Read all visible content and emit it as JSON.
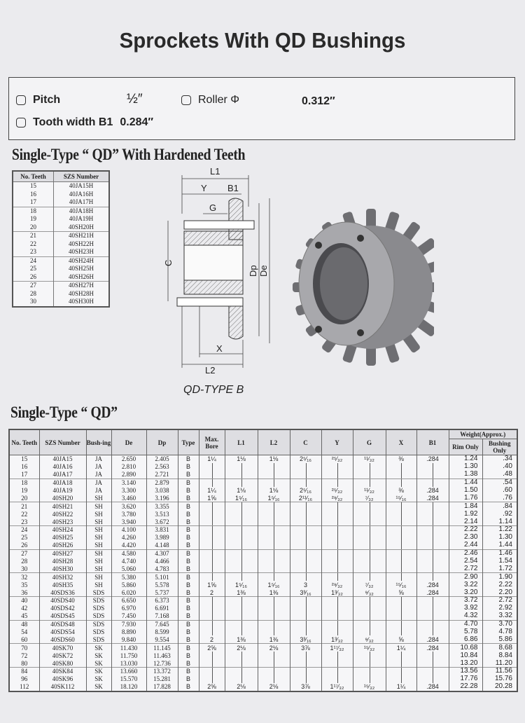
{
  "title": "Sprockets With QD Bushings",
  "specs": {
    "pitch_label": "Pitch",
    "pitch_value": "½″",
    "roller_label": "Roller Φ",
    "roller_value": "0.312″",
    "tooth_width_label": "Tooth width B1",
    "tooth_width_value": "0.284″"
  },
  "hardened": {
    "heading": "Single-Type “ QD” With Hardened Teeth",
    "columns": [
      "No. Teeth",
      "SZS Number"
    ],
    "rows": [
      [
        "15",
        "40JA15H"
      ],
      [
        "16",
        "40JA16H"
      ],
      [
        "17",
        "40JA17H"
      ],
      [
        "18",
        "40JA18H"
      ],
      [
        "19",
        "40JA19H"
      ],
      [
        "20",
        "40SH20H"
      ],
      [
        "21",
        "40SH21H"
      ],
      [
        "22",
        "40SH22H"
      ],
      [
        "23",
        "40SH23H"
      ],
      [
        "24",
        "40SH24H"
      ],
      [
        "25",
        "40SH25H"
      ],
      [
        "26",
        "40SH26H"
      ],
      [
        "27",
        "40SH27H"
      ],
      [
        "28",
        "40SH28H"
      ],
      [
        "30",
        "40SH30H"
      ]
    ]
  },
  "diagram": {
    "labels": {
      "L1": "L1",
      "Y": "Y",
      "B1": "B1",
      "G": "G",
      "C": "C",
      "Dp": "Dp",
      "De": "De",
      "X": "X",
      "L2": "L2"
    },
    "caption": "QD-TYPE B"
  },
  "single": {
    "heading": "Single-Type “ QD”",
    "columns": [
      "No. Teeth",
      "SZS Number",
      "Bush-ing",
      "De",
      "Dp",
      "Type",
      "Max. Bore",
      "L1",
      "L2",
      "C",
      "Y",
      "G",
      "X",
      "B1"
    ],
    "weight_header": "Weight(Approx.)",
    "weight_columns": [
      "Rim Only",
      "Bushing Only"
    ],
    "rows": [
      [
        "15",
        "40JA15",
        "JA",
        "2.650",
        "2.405",
        "B",
        "1¼",
        "1⅛",
        "1⅛",
        "2⁵⁄₁₆",
        "²⁵⁄₃₂",
        "¹¹⁄₃₂",
        "⅜",
        ".284",
        "1.24",
        ".34"
      ],
      [
        "16",
        "40JA16",
        "JA",
        "2.810",
        "2.563",
        "B",
        "",
        "",
        "",
        "",
        "",
        "",
        "",
        "",
        "1.30",
        ".40"
      ],
      [
        "17",
        "40JA17",
        "JA",
        "2.890",
        "2.721",
        "B",
        "",
        "",
        "",
        "",
        "",
        "",
        "",
        "",
        "1.38",
        ".48"
      ],
      [
        "18",
        "40JA18",
        "JA",
        "3.140",
        "2.879",
        "B",
        "",
        "",
        "",
        "",
        "",
        "",
        "",
        "",
        "1.44",
        ".54"
      ],
      [
        "19",
        "40JA19",
        "JA",
        "3.300",
        "3.038",
        "B",
        "1¼",
        "1⅛",
        "1⅛",
        "2⁵⁄₁₆",
        "²⁵⁄₃₂",
        "¹¹⁄₃₂",
        "⅜",
        ".284",
        "1.50",
        ".60"
      ],
      [
        "20",
        "40SH20",
        "SH",
        "3.460",
        "3.196",
        "B",
        "1⅝",
        "1⁵⁄₁₆",
        "1⁵⁄₁₆",
        "2¹¹⁄₁₆",
        "²⁹⁄₃₂",
        "⁷⁄₃₂",
        "¹⁵⁄₁₆",
        ".284",
        "1.76",
        ".76"
      ],
      [
        "21",
        "40SH21",
        "SH",
        "3.620",
        "3.355",
        "B",
        "",
        "",
        "",
        "",
        "",
        "",
        "",
        "",
        "1.84",
        ".84"
      ],
      [
        "22",
        "40SH22",
        "SH",
        "3.780",
        "3.513",
        "B",
        "",
        "",
        "",
        "",
        "",
        "",
        "",
        "",
        "1.92",
        ".92"
      ],
      [
        "23",
        "40SH23",
        "SH",
        "3.940",
        "3.672",
        "B",
        "",
        "",
        "",
        "",
        "",
        "",
        "",
        "",
        "2.14",
        "1.14"
      ],
      [
        "24",
        "40SH24",
        "SH",
        "4.100",
        "3.831",
        "B",
        "",
        "",
        "",
        "",
        "",
        "",
        "",
        "",
        "2.22",
        "1.22"
      ],
      [
        "25",
        "40SH25",
        "SH",
        "4.260",
        "3.989",
        "B",
        "",
        "",
        "",
        "",
        "",
        "",
        "",
        "",
        "2.30",
        "1.30"
      ],
      [
        "26",
        "40SH26",
        "SH",
        "4.420",
        "4.148",
        "B",
        "",
        "",
        "",
        "",
        "",
        "",
        "",
        "",
        "2.44",
        "1.44"
      ],
      [
        "27",
        "40SH27",
        "SH",
        "4.580",
        "4.307",
        "B",
        "",
        "",
        "",
        "",
        "",
        "",
        "",
        "",
        "2.46",
        "1.46"
      ],
      [
        "28",
        "40SH28",
        "SH",
        "4.740",
        "4.466",
        "B",
        "",
        "",
        "",
        "",
        "",
        "",
        "",
        "",
        "2.54",
        "1.54"
      ],
      [
        "30",
        "40SH30",
        "SH",
        "5.060",
        "4.783",
        "B",
        "",
        "",
        "",
        "",
        "",
        "",
        "",
        "",
        "2.72",
        "1.72"
      ],
      [
        "32",
        "40SH32",
        "SH",
        "5.380",
        "5.101",
        "B",
        "",
        "",
        "",
        "",
        "",
        "",
        "",
        "",
        "2.90",
        "1.90"
      ],
      [
        "35",
        "40SH35",
        "SH",
        "5.860",
        "5.578",
        "B",
        "1⅝",
        "1⁵⁄₁₆",
        "1⁵⁄₁₆",
        "3",
        "²⁹⁄₃₂",
        "⁷⁄₃₂",
        "¹⁵⁄₁₆",
        ".284",
        "3.22",
        "2.22"
      ],
      [
        "36",
        "40SDS36",
        "SDS",
        "6.020",
        "5.737",
        "B",
        "2",
        "1⅜",
        "1⅜",
        "3³⁄₁₆",
        "1³⁄₃₂",
        "⁹⁄₃₂",
        "⅝",
        ".284",
        "3.20",
        "2.20"
      ],
      [
        "40",
        "40SDS40",
        "SDS",
        "6.650",
        "6.373",
        "B",
        "",
        "",
        "",
        "",
        "",
        "",
        "",
        "",
        "3.72",
        "2.72"
      ],
      [
        "42",
        "40SDS42",
        "SDS",
        "6.970",
        "6.691",
        "B",
        "",
        "",
        "",
        "",
        "",
        "",
        "",
        "",
        "3.92",
        "2.92"
      ],
      [
        "45",
        "40SDS45",
        "SDS",
        "7.450",
        "7.168",
        "B",
        "",
        "",
        "",
        "",
        "",
        "",
        "",
        "",
        "4.32",
        "3.32"
      ],
      [
        "48",
        "40SDS48",
        "SDS",
        "7.930",
        "7.645",
        "B",
        "",
        "",
        "",
        "",
        "",
        "",
        "",
        "",
        "4.70",
        "3.70"
      ],
      [
        "54",
        "40SDS54",
        "SDS",
        "8.890",
        "8.599",
        "B",
        "",
        "",
        "",
        "",
        "",
        "",
        "",
        "",
        "5.78",
        "4.78"
      ],
      [
        "60",
        "40SDS60",
        "SDS",
        "9.840",
        "9.554",
        "B",
        "2",
        "1⅜",
        "1⅜",
        "3³⁄₁₆",
        "1³⁄₃₂",
        "⁹⁄₃₂",
        "⅝",
        ".284",
        "6.86",
        "5.86"
      ],
      [
        "70",
        "40SK70",
        "SK",
        "11.430",
        "11.145",
        "B",
        "2⅝",
        "2⅛",
        "2⅛",
        "3⅞",
        "1¹⁷⁄₃₂",
        "¹⁵⁄₃₂",
        "1¼",
        ".284",
        "10.68",
        "8.68"
      ],
      [
        "72",
        "40SK72",
        "SK",
        "11.750",
        "11.463",
        "B",
        "",
        "",
        "",
        "",
        "",
        "",
        "",
        "",
        "10.84",
        "8.84"
      ],
      [
        "80",
        "40SK80",
        "SK",
        "13.030",
        "12.736",
        "B",
        "",
        "",
        "",
        "",
        "",
        "",
        "",
        "",
        "13.20",
        "11.20"
      ],
      [
        "84",
        "40SK84",
        "SK",
        "13.660",
        "13.372",
        "B",
        "",
        "",
        "",
        "",
        "",
        "",
        "",
        "",
        "13.56",
        "11.56"
      ],
      [
        "96",
        "40SK96",
        "SK",
        "15.570",
        "15.281",
        "B",
        "",
        "",
        "",
        "",
        "",
        "",
        "",
        "",
        "17.76",
        "15.76"
      ],
      [
        "112",
        "40SK112",
        "SK",
        "18.120",
        "17.828",
        "B",
        "2⅝",
        "2⅛",
        "2⅛",
        "3⅞",
        "1¹⁷⁄₃₂",
        "¹⁵⁄₃₂",
        "1¼",
        ".284",
        "22.28",
        "20.28"
      ]
    ]
  }
}
